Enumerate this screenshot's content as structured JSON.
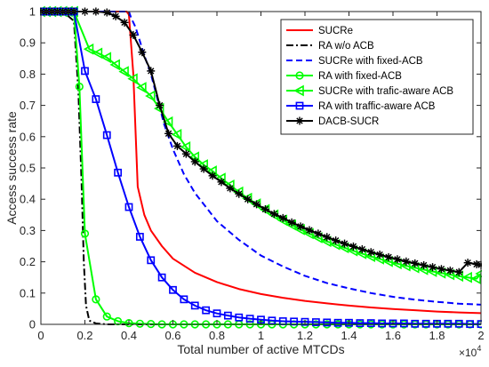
{
  "chart_data": {
    "type": "line",
    "xlabel": "Total number of active MTCDs",
    "ylabel": "Access success rate",
    "x_multiplier_text": "×10",
    "x_multiplier_exp": "4",
    "xlim": [
      0,
      20000
    ],
    "ylim": [
      0,
      1
    ],
    "xticks": [
      0,
      2000,
      4000,
      6000,
      8000,
      10000,
      12000,
      14000,
      16000,
      18000,
      20000
    ],
    "xtick_labels": [
      "0",
      "0.2",
      "0.4",
      "0.6",
      "0.8",
      "1",
      "1.2",
      "1.4",
      "1.6",
      "1.8",
      "2"
    ],
    "yticks": [
      0,
      0.1,
      0.2,
      0.3,
      0.4,
      0.5,
      0.6,
      0.7,
      0.8,
      0.9,
      1
    ],
    "ytick_labels": [
      "0",
      "0.1",
      "0.2",
      "0.3",
      "0.4",
      "0.5",
      "0.6",
      "0.7",
      "0.8",
      "0.9",
      "1"
    ],
    "grid": false,
    "legend_position": "top-right",
    "series": [
      {
        "name": "SUCRe",
        "color": "#ff0000",
        "dash": "solid",
        "marker": "none",
        "points": [
          [
            0,
            1
          ],
          [
            2000,
            1
          ],
          [
            3900,
            1
          ],
          [
            4000,
            0.99
          ],
          [
            4200,
            0.8
          ],
          [
            4400,
            0.44
          ],
          [
            4700,
            0.35
          ],
          [
            5000,
            0.3
          ],
          [
            5500,
            0.25
          ],
          [
            6000,
            0.21
          ],
          [
            7000,
            0.165
          ],
          [
            8000,
            0.135
          ],
          [
            9000,
            0.113
          ],
          [
            10000,
            0.097
          ],
          [
            11000,
            0.085
          ],
          [
            12000,
            0.075
          ],
          [
            13000,
            0.067
          ],
          [
            14000,
            0.06
          ],
          [
            15000,
            0.054
          ],
          [
            16000,
            0.049
          ],
          [
            17000,
            0.045
          ],
          [
            18000,
            0.041
          ],
          [
            19000,
            0.038
          ],
          [
            20000,
            0.036
          ]
        ]
      },
      {
        "name": "RA w/o ACB",
        "color": "#000000",
        "dash": "dashdot",
        "marker": "none",
        "points": [
          [
            0,
            1
          ],
          [
            1000,
            1
          ],
          [
            1500,
            0.97
          ],
          [
            1700,
            0.75
          ],
          [
            1850,
            0.45
          ],
          [
            1950,
            0.2
          ],
          [
            2050,
            0.06
          ],
          [
            2200,
            0.012
          ],
          [
            2500,
            0.003
          ],
          [
            3000,
            0
          ],
          [
            20000,
            0
          ]
        ]
      },
      {
        "name": "SUCRe with fixed-ACB",
        "color": "#0000ff",
        "dash": "dashed",
        "marker": "none",
        "points": [
          [
            0,
            1
          ],
          [
            4000,
            1
          ],
          [
            4100,
            0.98
          ],
          [
            4300,
            0.95
          ],
          [
            4700,
            0.86
          ],
          [
            5000,
            0.8
          ],
          [
            5300,
            0.72
          ],
          [
            5600,
            0.64
          ],
          [
            6000,
            0.56
          ],
          [
            6500,
            0.48
          ],
          [
            7000,
            0.42
          ],
          [
            8000,
            0.33
          ],
          [
            9000,
            0.27
          ],
          [
            10000,
            0.22
          ],
          [
            11000,
            0.185
          ],
          [
            12000,
            0.155
          ],
          [
            13000,
            0.132
          ],
          [
            14000,
            0.115
          ],
          [
            15000,
            0.1
          ],
          [
            16000,
            0.088
          ],
          [
            17000,
            0.079
          ],
          [
            18000,
            0.072
          ],
          [
            19000,
            0.066
          ],
          [
            20000,
            0.063
          ]
        ]
      },
      {
        "name": "RA with fixed-ACB",
        "color": "#00ff00",
        "dash": "solid",
        "marker": "circle",
        "points": [
          [
            0,
            1
          ],
          [
            250,
            1
          ],
          [
            500,
            1
          ],
          [
            750,
            1
          ],
          [
            1000,
            1
          ],
          [
            1250,
            1
          ],
          [
            1500,
            1
          ],
          [
            1750,
            0.76
          ],
          [
            2000,
            0.29
          ],
          [
            2500,
            0.08
          ],
          [
            3000,
            0.025
          ],
          [
            3500,
            0.01
          ],
          [
            4000,
            0.004
          ],
          [
            4500,
            0.002
          ],
          [
            5000,
            0.001
          ],
          [
            5500,
            0
          ],
          [
            6000,
            0
          ],
          [
            6500,
            0
          ],
          [
            7000,
            0
          ],
          [
            7500,
            0
          ],
          [
            8000,
            0
          ],
          [
            8500,
            0
          ],
          [
            9000,
            0
          ],
          [
            9500,
            0
          ],
          [
            10000,
            0
          ],
          [
            10500,
            0
          ],
          [
            11000,
            0
          ],
          [
            11500,
            0
          ],
          [
            12000,
            0
          ],
          [
            12500,
            0
          ],
          [
            13000,
            0
          ],
          [
            13500,
            0
          ],
          [
            14000,
            0
          ],
          [
            14500,
            0
          ],
          [
            15000,
            0
          ],
          [
            15500,
            0
          ],
          [
            16000,
            0
          ],
          [
            16500,
            0
          ],
          [
            17000,
            0
          ],
          [
            17500,
            0
          ],
          [
            18000,
            0
          ],
          [
            18500,
            0
          ],
          [
            19000,
            0
          ],
          [
            19500,
            0
          ],
          [
            20000,
            0
          ]
        ]
      },
      {
        "name": "SUCRe with trafic-aware ACB",
        "color": "#00ff00",
        "dash": "solid",
        "marker": "triangle-left",
        "points": [
          [
            0,
            1
          ],
          [
            250,
            1
          ],
          [
            500,
            1
          ],
          [
            750,
            1
          ],
          [
            1000,
            1
          ],
          [
            1250,
            1
          ],
          [
            1500,
            1
          ],
          [
            2200,
            0.88
          ],
          [
            2600,
            0.867
          ],
          [
            3000,
            0.853
          ],
          [
            3400,
            0.83
          ],
          [
            3800,
            0.808
          ],
          [
            4200,
            0.785
          ],
          [
            4600,
            0.757
          ],
          [
            5000,
            0.73
          ],
          [
            5400,
            0.69
          ],
          [
            5800,
            0.647
          ],
          [
            6200,
            0.607
          ],
          [
            6600,
            0.567
          ],
          [
            7000,
            0.535
          ],
          [
            7400,
            0.51
          ],
          [
            7800,
            0.49
          ],
          [
            8200,
            0.467
          ],
          [
            8600,
            0.445
          ],
          [
            9000,
            0.423
          ],
          [
            9400,
            0.403
          ],
          [
            9800,
            0.385
          ],
          [
            10200,
            0.367
          ],
          [
            10600,
            0.35
          ],
          [
            11000,
            0.333
          ],
          [
            11400,
            0.318
          ],
          [
            11800,
            0.303
          ],
          [
            12200,
            0.29
          ],
          [
            12600,
            0.277
          ],
          [
            13000,
            0.265
          ],
          [
            13400,
            0.255
          ],
          [
            13800,
            0.245
          ],
          [
            14200,
            0.235
          ],
          [
            14600,
            0.226
          ],
          [
            15000,
            0.217
          ],
          [
            15400,
            0.209
          ],
          [
            15800,
            0.201
          ],
          [
            16200,
            0.194
          ],
          [
            16600,
            0.187
          ],
          [
            17000,
            0.181
          ],
          [
            17400,
            0.175
          ],
          [
            17800,
            0.169
          ],
          [
            18200,
            0.164
          ],
          [
            18600,
            0.159
          ],
          [
            19000,
            0.154
          ],
          [
            19400,
            0.15
          ],
          [
            19800,
            0.146
          ],
          [
            20000,
            0.162
          ]
        ]
      },
      {
        "name": "RA with traffic-aware ACB",
        "color": "#0000ff",
        "dash": "solid",
        "marker": "square",
        "points": [
          [
            0,
            1
          ],
          [
            250,
            1
          ],
          [
            500,
            1
          ],
          [
            750,
            1
          ],
          [
            1000,
            1
          ],
          [
            1250,
            1
          ],
          [
            1500,
            1
          ],
          [
            2000,
            0.81
          ],
          [
            2500,
            0.72
          ],
          [
            3000,
            0.605
          ],
          [
            3500,
            0.485
          ],
          [
            4000,
            0.375
          ],
          [
            4500,
            0.28
          ],
          [
            5000,
            0.205
          ],
          [
            5500,
            0.15
          ],
          [
            6000,
            0.11
          ],
          [
            6500,
            0.08
          ],
          [
            7000,
            0.06
          ],
          [
            7500,
            0.045
          ],
          [
            8000,
            0.035
          ],
          [
            8500,
            0.028
          ],
          [
            9000,
            0.022
          ],
          [
            9500,
            0.018
          ],
          [
            10000,
            0.015
          ],
          [
            10500,
            0.012
          ],
          [
            11000,
            0.01
          ],
          [
            11500,
            0.009
          ],
          [
            12000,
            0.008
          ],
          [
            12500,
            0.007
          ],
          [
            13000,
            0.006
          ],
          [
            13500,
            0.005
          ],
          [
            14000,
            0.005
          ],
          [
            14500,
            0.004
          ],
          [
            15000,
            0.004
          ],
          [
            15500,
            0.003
          ],
          [
            16000,
            0.003
          ],
          [
            16500,
            0.003
          ],
          [
            17000,
            0.002
          ],
          [
            17500,
            0.002
          ],
          [
            18000,
            0.002
          ],
          [
            18500,
            0.002
          ],
          [
            19000,
            0.002
          ],
          [
            19500,
            0.001
          ],
          [
            20000,
            0.001
          ]
        ]
      },
      {
        "name": "DACB-SUCR",
        "color": "#000000",
        "dash": "solid",
        "marker": "asterisk",
        "points": [
          [
            0,
            1
          ],
          [
            250,
            1
          ],
          [
            500,
            1
          ],
          [
            750,
            1
          ],
          [
            1000,
            1
          ],
          [
            1250,
            1
          ],
          [
            1500,
            1
          ],
          [
            2000,
            1
          ],
          [
            2500,
            1
          ],
          [
            3000,
            0.997
          ],
          [
            3400,
            0.985
          ],
          [
            3800,
            0.965
          ],
          [
            4200,
            0.925
          ],
          [
            4600,
            0.87
          ],
          [
            5000,
            0.81
          ],
          [
            5400,
            0.7
          ],
          [
            5800,
            0.61
          ],
          [
            6200,
            0.57
          ],
          [
            6600,
            0.545
          ],
          [
            7000,
            0.52
          ],
          [
            7400,
            0.497
          ],
          [
            7800,
            0.475
          ],
          [
            8200,
            0.455
          ],
          [
            8600,
            0.435
          ],
          [
            9000,
            0.417
          ],
          [
            9400,
            0.4
          ],
          [
            9800,
            0.384
          ],
          [
            10200,
            0.368
          ],
          [
            10600,
            0.353
          ],
          [
            11000,
            0.34
          ],
          [
            11400,
            0.326
          ],
          [
            11800,
            0.313
          ],
          [
            12200,
            0.301
          ],
          [
            12600,
            0.29
          ],
          [
            13000,
            0.279
          ],
          [
            13400,
            0.268
          ],
          [
            13800,
            0.258
          ],
          [
            14200,
            0.249
          ],
          [
            14600,
            0.24
          ],
          [
            15000,
            0.231
          ],
          [
            15400,
            0.223
          ],
          [
            15800,
            0.215
          ],
          [
            16200,
            0.208
          ],
          [
            16600,
            0.201
          ],
          [
            17000,
            0.195
          ],
          [
            17400,
            0.189
          ],
          [
            17800,
            0.183
          ],
          [
            18200,
            0.177
          ],
          [
            18600,
            0.172
          ],
          [
            19000,
            0.167
          ],
          [
            19400,
            0.197
          ],
          [
            19800,
            0.192
          ],
          [
            20000,
            0.19
          ]
        ]
      }
    ]
  }
}
